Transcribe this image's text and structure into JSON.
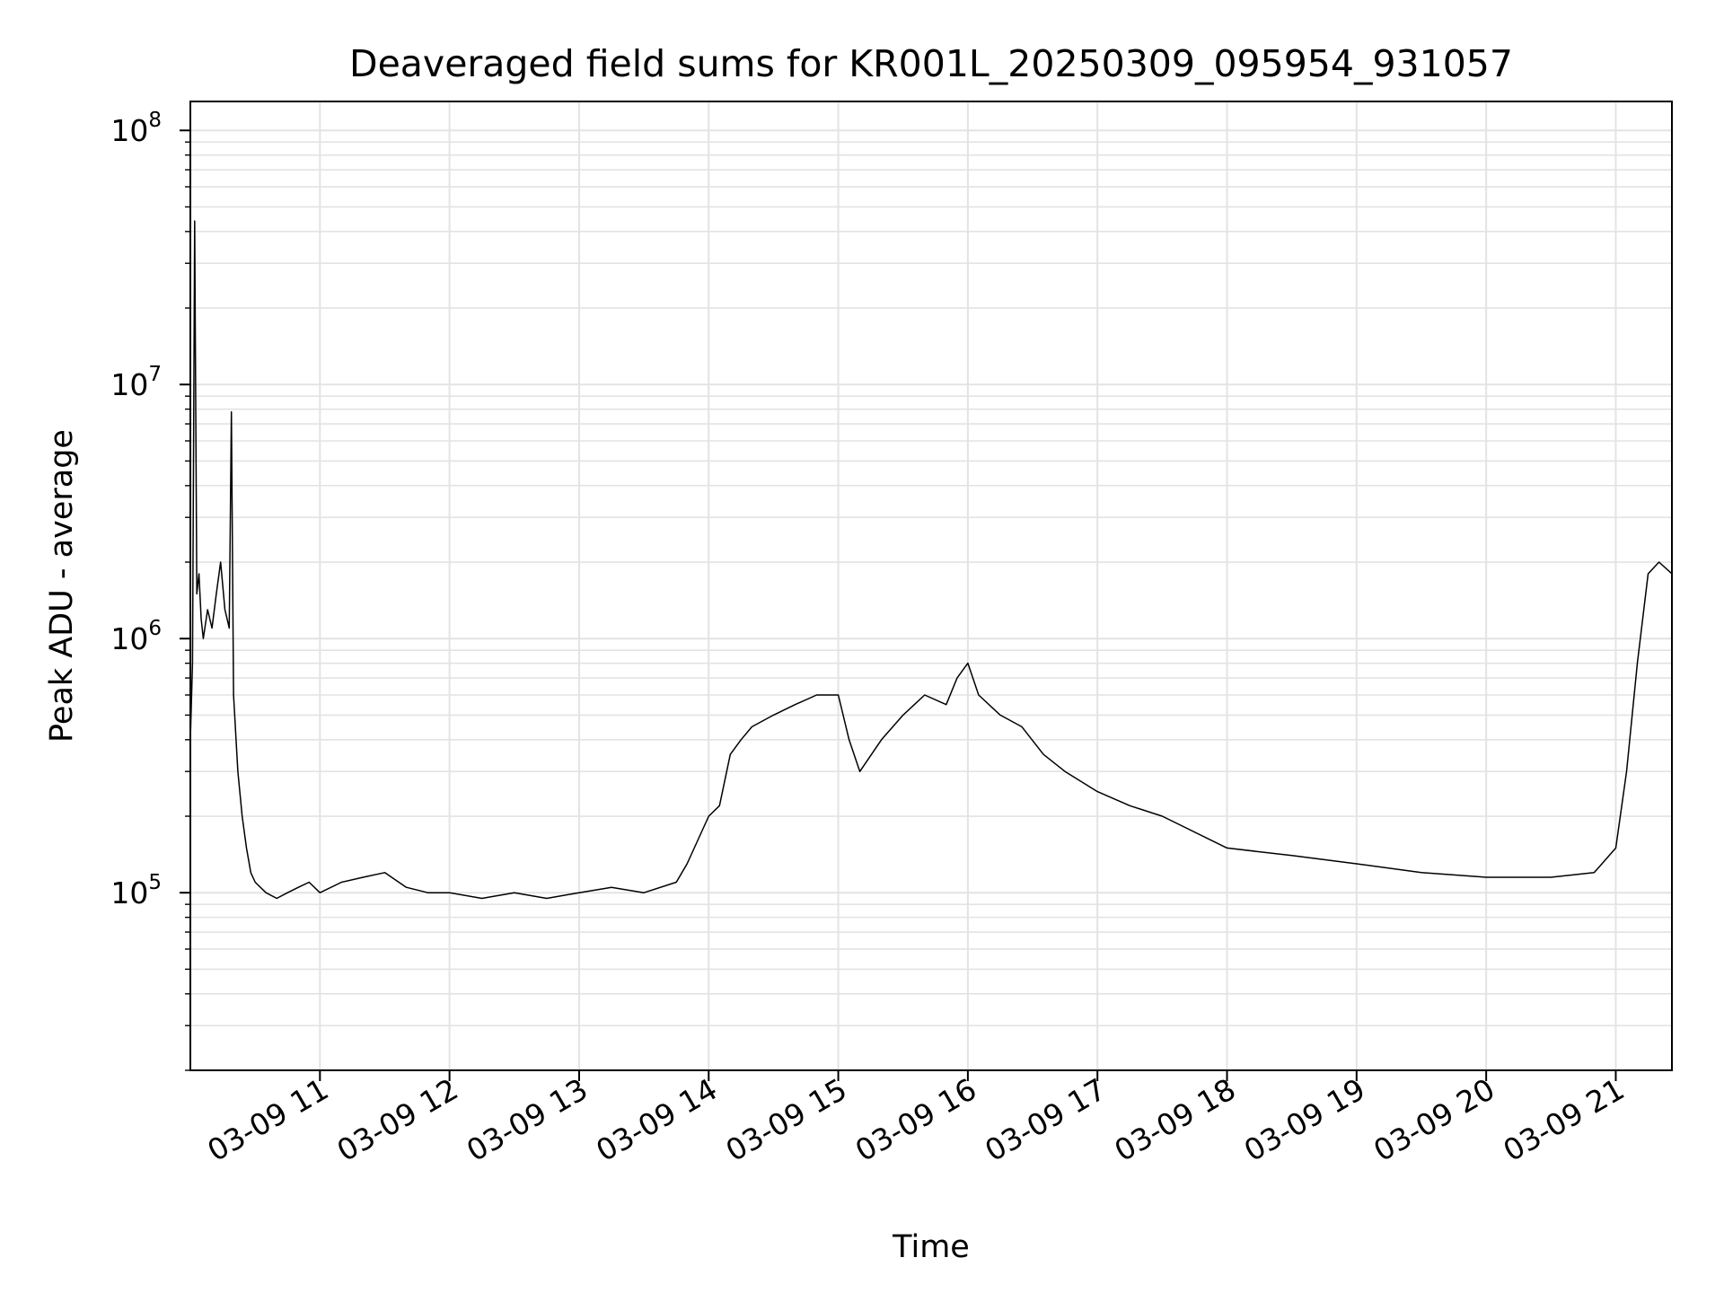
{
  "chart_data": {
    "type": "line",
    "title": "Deaveraged field sums for KR001L_20250309_095954_931057",
    "xlabel": "Time",
    "ylabel": "Peak ADU - average",
    "y_scale": "log",
    "ylim": [
      20000,
      130000000
    ],
    "xlim": [
      "2025-03-09 10:00",
      "2025-03-09 21:26"
    ],
    "grid": true,
    "line_color": "#000000",
    "grid_color": "#e3e3e3",
    "x_ticks": [
      {
        "value": "2025-03-09 11:00",
        "label": "03-09 11"
      },
      {
        "value": "2025-03-09 12:00",
        "label": "03-09 12"
      },
      {
        "value": "2025-03-09 13:00",
        "label": "03-09 13"
      },
      {
        "value": "2025-03-09 14:00",
        "label": "03-09 14"
      },
      {
        "value": "2025-03-09 15:00",
        "label": "03-09 15"
      },
      {
        "value": "2025-03-09 16:00",
        "label": "03-09 16"
      },
      {
        "value": "2025-03-09 17:00",
        "label": "03-09 17"
      },
      {
        "value": "2025-03-09 18:00",
        "label": "03-09 18"
      },
      {
        "value": "2025-03-09 19:00",
        "label": "03-09 19"
      },
      {
        "value": "2025-03-09 20:00",
        "label": "03-09 20"
      },
      {
        "value": "2025-03-09 21:00",
        "label": "03-09 21"
      }
    ],
    "y_ticks": [
      {
        "value": 100000,
        "base": "10",
        "exp": "5"
      },
      {
        "value": 1000000,
        "base": "10",
        "exp": "6"
      },
      {
        "value": 10000000,
        "base": "10",
        "exp": "7"
      },
      {
        "value": 100000000,
        "base": "10",
        "exp": "8"
      }
    ],
    "series": [
      {
        "x": [
          "2025-03-09 10:00",
          "2025-03-09 10:01",
          "2025-03-09 10:02",
          "2025-03-09 10:03",
          "2025-03-09 10:04",
          "2025-03-09 10:05",
          "2025-03-09 10:06",
          "2025-03-09 10:08",
          "2025-03-09 10:10",
          "2025-03-09 10:12",
          "2025-03-09 10:14",
          "2025-03-09 10:16",
          "2025-03-09 10:18",
          "2025-03-09 10:19",
          "2025-03-09 10:20",
          "2025-03-09 10:22",
          "2025-03-09 10:24",
          "2025-03-09 10:26",
          "2025-03-09 10:28",
          "2025-03-09 10:30",
          "2025-03-09 10:35",
          "2025-03-09 10:40",
          "2025-03-09 10:45",
          "2025-03-09 10:50",
          "2025-03-09 10:55",
          "2025-03-09 11:00",
          "2025-03-09 11:10",
          "2025-03-09 11:20",
          "2025-03-09 11:30",
          "2025-03-09 11:40",
          "2025-03-09 11:50",
          "2025-03-09 12:00",
          "2025-03-09 12:15",
          "2025-03-09 12:30",
          "2025-03-09 12:45",
          "2025-03-09 13:00",
          "2025-03-09 13:15",
          "2025-03-09 13:30",
          "2025-03-09 13:45",
          "2025-03-09 13:50",
          "2025-03-09 14:00",
          "2025-03-09 14:05",
          "2025-03-09 14:10",
          "2025-03-09 14:15",
          "2025-03-09 14:20",
          "2025-03-09 14:30",
          "2025-03-09 14:40",
          "2025-03-09 14:50",
          "2025-03-09 15:00",
          "2025-03-09 15:05",
          "2025-03-09 15:10",
          "2025-03-09 15:20",
          "2025-03-09 15:30",
          "2025-03-09 15:40",
          "2025-03-09 15:50",
          "2025-03-09 15:55",
          "2025-03-09 16:00",
          "2025-03-09 16:05",
          "2025-03-09 16:15",
          "2025-03-09 16:25",
          "2025-03-09 16:35",
          "2025-03-09 16:45",
          "2025-03-09 17:00",
          "2025-03-09 17:15",
          "2025-03-09 17:30",
          "2025-03-09 18:00",
          "2025-03-09 18:30",
          "2025-03-09 19:00",
          "2025-03-09 19:30",
          "2025-03-09 20:00",
          "2025-03-09 20:30",
          "2025-03-09 20:50",
          "2025-03-09 21:00",
          "2025-03-09 21:05",
          "2025-03-09 21:10",
          "2025-03-09 21:15",
          "2025-03-09 21:20",
          "2025-03-09 21:26"
        ],
        "y": [
          400000,
          800000,
          44000000,
          1500000,
          1800000,
          1200000,
          1000000,
          1300000,
          1100000,
          1500000,
          2000000,
          1300000,
          1100000,
          7800000,
          600000,
          300000,
          200000,
          150000,
          120000,
          110000,
          100000,
          95000,
          100000,
          105000,
          110000,
          100000,
          110000,
          115000,
          120000,
          105000,
          100000,
          100000,
          95000,
          100000,
          95000,
          100000,
          105000,
          100000,
          110000,
          130000,
          200000,
          220000,
          350000,
          400000,
          450000,
          500000,
          550000,
          600000,
          600000,
          400000,
          300000,
          400000,
          500000,
          600000,
          550000,
          700000,
          800000,
          600000,
          500000,
          450000,
          350000,
          300000,
          250000,
          220000,
          200000,
          150000,
          140000,
          130000,
          120000,
          115000,
          115000,
          120000,
          150000,
          300000,
          800000,
          1800000,
          2000000,
          1800000
        ]
      }
    ]
  }
}
